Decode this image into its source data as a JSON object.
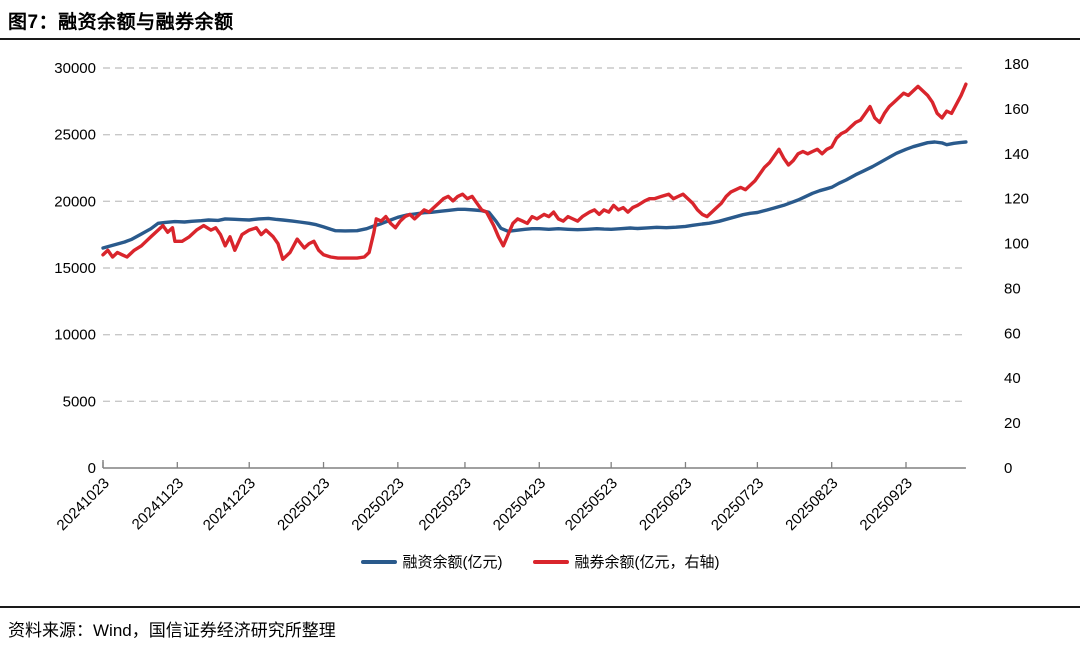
{
  "page": {
    "title": "图7：融资余额与融券余额",
    "source": "资料来源：Wind，国信证券经济研究所整理"
  },
  "legend": [
    {
      "label": "融资余额(亿元)",
      "color": "#2a5a8c"
    },
    {
      "label": "融券余额(亿元，右轴)",
      "color": "#d9252c"
    }
  ],
  "colors": {
    "financing_line": "#2a5a8c",
    "securities_lending_line": "#d9252c",
    "gridline": "#c8c8c8",
    "axis": "#808080",
    "tick_label": "#000000"
  },
  "chart_data": {
    "type": "line",
    "title": "融资余额与融券余额",
    "xlabel": "",
    "left_axis": {
      "label": "融资余额(亿元)",
      "min": 0,
      "max": 30000,
      "ticks": [
        0,
        5000,
        10000,
        15000,
        20000,
        25000,
        30000
      ]
    },
    "right_axis": {
      "label": "融券余额(亿元)",
      "min": 0,
      "max": 180,
      "ticks": [
        0,
        20,
        40,
        60,
        80,
        100,
        120,
        140,
        160,
        180
      ]
    },
    "grid": "horizontal-dashed",
    "legend_position": "bottom-center",
    "x_ticks": [
      {
        "day": 0,
        "label": "20241023"
      },
      {
        "day": 31,
        "label": "20241123"
      },
      {
        "day": 61,
        "label": "20241223"
      },
      {
        "day": 92,
        "label": "20250123"
      },
      {
        "day": 123,
        "label": "20250223"
      },
      {
        "day": 151,
        "label": "20250323"
      },
      {
        "day": 182,
        "label": "20250423"
      },
      {
        "day": 212,
        "label": "20250523"
      },
      {
        "day": 243,
        "label": "20250623"
      },
      {
        "day": 273,
        "label": "20250723"
      },
      {
        "day": 304,
        "label": "20250823"
      },
      {
        "day": 335,
        "label": "20250923"
      }
    ],
    "x_day_range": [
      0,
      360
    ],
    "series": [
      {
        "name": "融资余额(亿元)",
        "axis": "left",
        "color": "#2a5a8c",
        "points": [
          [
            0,
            16500
          ],
          [
            3,
            16650
          ],
          [
            6,
            16800
          ],
          [
            9,
            16950
          ],
          [
            12,
            17150
          ],
          [
            16,
            17550
          ],
          [
            20,
            17950
          ],
          [
            23,
            18350
          ],
          [
            26,
            18420
          ],
          [
            30,
            18480
          ],
          [
            34,
            18450
          ],
          [
            37,
            18500
          ],
          [
            41,
            18550
          ],
          [
            44,
            18600
          ],
          [
            48,
            18570
          ],
          [
            51,
            18680
          ],
          [
            55,
            18650
          ],
          [
            58,
            18620
          ],
          [
            61,
            18600
          ],
          [
            65,
            18680
          ],
          [
            69,
            18720
          ],
          [
            72,
            18650
          ],
          [
            75,
            18600
          ],
          [
            79,
            18520
          ],
          [
            82,
            18450
          ],
          [
            86,
            18350
          ],
          [
            89,
            18250
          ],
          [
            92,
            18080
          ],
          [
            95,
            17900
          ],
          [
            97,
            17800
          ],
          [
            101,
            17780
          ],
          [
            106,
            17800
          ],
          [
            110,
            17950
          ],
          [
            113,
            18150
          ],
          [
            116,
            18320
          ],
          [
            120,
            18600
          ],
          [
            123,
            18800
          ],
          [
            127,
            18980
          ],
          [
            130,
            19050
          ],
          [
            134,
            19150
          ],
          [
            137,
            19180
          ],
          [
            141,
            19260
          ],
          [
            144,
            19320
          ],
          [
            148,
            19400
          ],
          [
            151,
            19400
          ],
          [
            155,
            19350
          ],
          [
            158,
            19300
          ],
          [
            161,
            19180
          ],
          [
            164,
            18500
          ],
          [
            166,
            17980
          ],
          [
            169,
            17750
          ],
          [
            172,
            17820
          ],
          [
            176,
            17900
          ],
          [
            179,
            17950
          ],
          [
            182,
            17950
          ],
          [
            186,
            17900
          ],
          [
            190,
            17950
          ],
          [
            194,
            17900
          ],
          [
            198,
            17870
          ],
          [
            202,
            17900
          ],
          [
            206,
            17950
          ],
          [
            209,
            17920
          ],
          [
            212,
            17900
          ],
          [
            216,
            17950
          ],
          [
            220,
            18000
          ],
          [
            223,
            17960
          ],
          [
            227,
            18010
          ],
          [
            231,
            18050
          ],
          [
            235,
            18020
          ],
          [
            239,
            18060
          ],
          [
            243,
            18120
          ],
          [
            246,
            18200
          ],
          [
            250,
            18300
          ],
          [
            253,
            18360
          ],
          [
            257,
            18500
          ],
          [
            260,
            18650
          ],
          [
            264,
            18850
          ],
          [
            267,
            19000
          ],
          [
            270,
            19100
          ],
          [
            273,
            19160
          ],
          [
            277,
            19350
          ],
          [
            280,
            19500
          ],
          [
            284,
            19700
          ],
          [
            287,
            19900
          ],
          [
            290,
            20100
          ],
          [
            293,
            20350
          ],
          [
            296,
            20600
          ],
          [
            299,
            20800
          ],
          [
            302,
            20950
          ],
          [
            304,
            21050
          ],
          [
            307,
            21350
          ],
          [
            310,
            21600
          ],
          [
            314,
            22000
          ],
          [
            317,
            22250
          ],
          [
            321,
            22600
          ],
          [
            324,
            22900
          ],
          [
            328,
            23300
          ],
          [
            331,
            23600
          ],
          [
            335,
            23900
          ],
          [
            338,
            24100
          ],
          [
            341,
            24250
          ],
          [
            344,
            24400
          ],
          [
            347,
            24450
          ],
          [
            350,
            24380
          ],
          [
            352,
            24250
          ],
          [
            355,
            24350
          ],
          [
            358,
            24420
          ],
          [
            360,
            24450
          ]
        ]
      },
      {
        "name": "融券余额(亿元，右轴)",
        "axis": "right",
        "color": "#d9252c",
        "points": [
          [
            0,
            95
          ],
          [
            2,
            97
          ],
          [
            4,
            94
          ],
          [
            6,
            96
          ],
          [
            8,
            95
          ],
          [
            10,
            94
          ],
          [
            13,
            97
          ],
          [
            16,
            99
          ],
          [
            18,
            101
          ],
          [
            20,
            103
          ],
          [
            23,
            106
          ],
          [
            25,
            108
          ],
          [
            27,
            105
          ],
          [
            29,
            107
          ],
          [
            30,
            101
          ],
          [
            33,
            101
          ],
          [
            36,
            103
          ],
          [
            39,
            106
          ],
          [
            42,
            108
          ],
          [
            45,
            106
          ],
          [
            47,
            107
          ],
          [
            49,
            104
          ],
          [
            51,
            99
          ],
          [
            53,
            103
          ],
          [
            55,
            97
          ],
          [
            58,
            104
          ],
          [
            61,
            106
          ],
          [
            64,
            107
          ],
          [
            66,
            104
          ],
          [
            68,
            106
          ],
          [
            71,
            103
          ],
          [
            73,
            100
          ],
          [
            75,
            93
          ],
          [
            78,
            96
          ],
          [
            81,
            102
          ],
          [
            84,
            98
          ],
          [
            86,
            100
          ],
          [
            88,
            101
          ],
          [
            90,
            97
          ],
          [
            92,
            95
          ],
          [
            95,
            94
          ],
          [
            98,
            93.5
          ],
          [
            102,
            93.5
          ],
          [
            106,
            93.5
          ],
          [
            109,
            94
          ],
          [
            111,
            96
          ],
          [
            113,
            105
          ],
          [
            114,
            111
          ],
          [
            116,
            110
          ],
          [
            118,
            112
          ],
          [
            120,
            109
          ],
          [
            122,
            107
          ],
          [
            124,
            110
          ],
          [
            126,
            112
          ],
          [
            128,
            113
          ],
          [
            130,
            111
          ],
          [
            132,
            113
          ],
          [
            134,
            115
          ],
          [
            136,
            114
          ],
          [
            138,
            116
          ],
          [
            140,
            118
          ],
          [
            142,
            120
          ],
          [
            144,
            121
          ],
          [
            146,
            119
          ],
          [
            148,
            121
          ],
          [
            150,
            122
          ],
          [
            152,
            120
          ],
          [
            154,
            121
          ],
          [
            156,
            118
          ],
          [
            158,
            115
          ],
          [
            160,
            114
          ],
          [
            163,
            108
          ],
          [
            165,
            103
          ],
          [
            167,
            99
          ],
          [
            169,
            104
          ],
          [
            171,
            109
          ],
          [
            173,
            111
          ],
          [
            175,
            110
          ],
          [
            177,
            109
          ],
          [
            179,
            112
          ],
          [
            181,
            111
          ],
          [
            184,
            113
          ],
          [
            186,
            112
          ],
          [
            188,
            114
          ],
          [
            190,
            111
          ],
          [
            192,
            110
          ],
          [
            194,
            112
          ],
          [
            196,
            111
          ],
          [
            198,
            110
          ],
          [
            200,
            112
          ],
          [
            203,
            114
          ],
          [
            205,
            115
          ],
          [
            207,
            113
          ],
          [
            209,
            115
          ],
          [
            211,
            114
          ],
          [
            213,
            117
          ],
          [
            215,
            115
          ],
          [
            217,
            116
          ],
          [
            219,
            114
          ],
          [
            221,
            116
          ],
          [
            223,
            117
          ],
          [
            226,
            119
          ],
          [
            228,
            120
          ],
          [
            230,
            120
          ],
          [
            233,
            121
          ],
          [
            236,
            122
          ],
          [
            238,
            120
          ],
          [
            240,
            121
          ],
          [
            242,
            122
          ],
          [
            244,
            120
          ],
          [
            246,
            118
          ],
          [
            248,
            115
          ],
          [
            250,
            113
          ],
          [
            252,
            112
          ],
          [
            254,
            114
          ],
          [
            256,
            116
          ],
          [
            258,
            118
          ],
          [
            260,
            121
          ],
          [
            262,
            123
          ],
          [
            264,
            124
          ],
          [
            266,
            125
          ],
          [
            268,
            124
          ],
          [
            270,
            126
          ],
          [
            272,
            128
          ],
          [
            274,
            131
          ],
          [
            276,
            134
          ],
          [
            278,
            136
          ],
          [
            280,
            139
          ],
          [
            282,
            142
          ],
          [
            284,
            138
          ],
          [
            286,
            135
          ],
          [
            288,
            137
          ],
          [
            290,
            140
          ],
          [
            292,
            141
          ],
          [
            294,
            140
          ],
          [
            296,
            141
          ],
          [
            298,
            142
          ],
          [
            300,
            140
          ],
          [
            302,
            142
          ],
          [
            304,
            143
          ],
          [
            306,
            147
          ],
          [
            308,
            149
          ],
          [
            310,
            150
          ],
          [
            312,
            152
          ],
          [
            314,
            154
          ],
          [
            316,
            155
          ],
          [
            318,
            158
          ],
          [
            320,
            161
          ],
          [
            322,
            156
          ],
          [
            324,
            154
          ],
          [
            326,
            158
          ],
          [
            328,
            161
          ],
          [
            330,
            163
          ],
          [
            332,
            165
          ],
          [
            334,
            167
          ],
          [
            336,
            166
          ],
          [
            338,
            168
          ],
          [
            340,
            170
          ],
          [
            342,
            168
          ],
          [
            344,
            166
          ],
          [
            346,
            163
          ],
          [
            348,
            158
          ],
          [
            350,
            156
          ],
          [
            352,
            159
          ],
          [
            354,
            158
          ],
          [
            356,
            162
          ],
          [
            358,
            166
          ],
          [
            360,
            171
          ]
        ]
      }
    ]
  }
}
